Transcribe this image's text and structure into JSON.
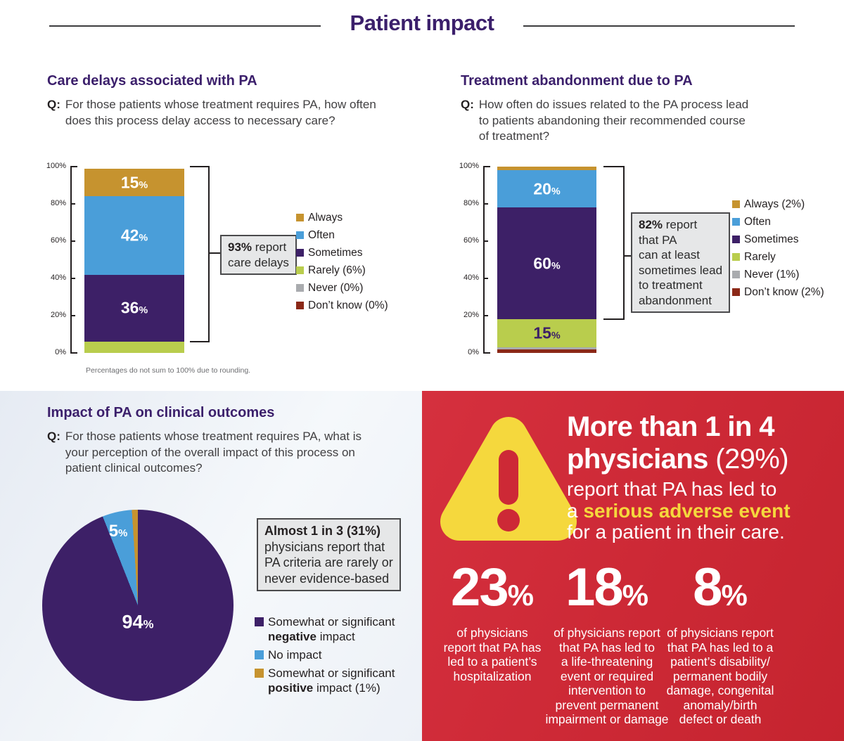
{
  "page": {
    "title": "Patient impact"
  },
  "labels": {
    "q_prefix": "Q:"
  },
  "colors": {
    "heading_purple": "#3b1f6b",
    "panel_red": "#cd2936",
    "alert_yellow": "#f5d83d",
    "callout_bg": "#e6e7e8",
    "callout_border": "#4a4a4c"
  },
  "chart_data": [
    {
      "type": "bar",
      "variant": "stacked-single-bar",
      "title": "Care delays associated with PA",
      "question_lines": [
        "For those patients whose treatment requires PA, how often",
        "does this process delay access to necessary care?"
      ],
      "ylim": [
        0,
        100
      ],
      "ylabel_ticks": [
        "0%",
        "20%",
        "40%",
        "60%",
        "80%",
        "100%"
      ],
      "segments_bottom_to_top": [
        {
          "name": "Rarely",
          "value": 6,
          "color": "#b9cd4d"
        },
        {
          "name": "Sometimes",
          "value": 36,
          "color": "#3d2067",
          "label": "36",
          "label_color": "#ffffff"
        },
        {
          "name": "Often",
          "value": 42,
          "color": "#4a9ed9",
          "label": "42",
          "label_color": "#ffffff"
        },
        {
          "name": "Always",
          "value": 15,
          "color": "#c6932f",
          "label": "15",
          "label_color": "#ffffff"
        }
      ],
      "legend": [
        {
          "label": "Always",
          "color": "#c6932f"
        },
        {
          "label": "Often",
          "color": "#4a9ed9"
        },
        {
          "label": "Sometimes",
          "color": "#3d2067"
        },
        {
          "label": "Rarely (6%)",
          "color": "#b9cd4d"
        },
        {
          "label": "Never (0%)",
          "color": "#a9abae"
        },
        {
          "label": "Don’t know (0%)",
          "color": "#8b2817"
        }
      ],
      "bracket_span": {
        "from_pct": 100,
        "to_pct": 6
      },
      "callout": {
        "line1_bold": "93%",
        "line1_rest": " report",
        "lines": [
          "care delays"
        ]
      },
      "note": "Percentages do not sum to 100% due to rounding."
    },
    {
      "type": "bar",
      "variant": "stacked-single-bar",
      "title": "Treatment abandonment due to PA",
      "question_lines": [
        "How often do issues related to the PA process lead",
        "to patients abandoning their recommended course",
        "of treatment?"
      ],
      "ylim": [
        0,
        100
      ],
      "ylabel_ticks": [
        "0%",
        "20%",
        "40%",
        "60%",
        "80%",
        "100%"
      ],
      "segments_bottom_to_top": [
        {
          "name": "Don’t know",
          "value": 2,
          "color": "#8b2817"
        },
        {
          "name": "Never",
          "value": 1,
          "color": "#a9abae"
        },
        {
          "name": "Rarely",
          "value": 15,
          "color": "#b9cd4d",
          "label": "15",
          "label_color": "#3d2067"
        },
        {
          "name": "Sometimes",
          "value": 60,
          "color": "#3d2067",
          "label": "60",
          "label_color": "#ffffff"
        },
        {
          "name": "Often",
          "value": 20,
          "color": "#4a9ed9",
          "label": "20",
          "label_color": "#ffffff"
        },
        {
          "name": "Always",
          "value": 2,
          "color": "#c6932f"
        }
      ],
      "legend": [
        {
          "label": "Always (2%)",
          "color": "#c6932f"
        },
        {
          "label": "Often",
          "color": "#4a9ed9"
        },
        {
          "label": "Sometimes",
          "color": "#3d2067"
        },
        {
          "label": "Rarely",
          "color": "#b9cd4d"
        },
        {
          "label": "Never (1%)",
          "color": "#a9abae"
        },
        {
          "label": "Don’t know (2%)",
          "color": "#8b2817"
        }
      ],
      "bracket_span": {
        "from_pct": 100,
        "to_pct": 18
      },
      "callout": {
        "line1_bold": "82%",
        "line1_rest": " report",
        "lines": [
          "that PA",
          "can at least",
          "sometimes lead",
          "to treatment",
          "abandonment"
        ]
      }
    },
    {
      "type": "pie",
      "title": "Impact of PA on clinical outcomes",
      "question_lines": [
        "For those patients whose treatment requires PA, what is",
        "your perception of the overall impact of this process on",
        "patient clinical outcomes?"
      ],
      "slices": [
        {
          "label": "Somewhat or significant negative impact",
          "value": 94,
          "color": "#3d2067",
          "value_label": "94"
        },
        {
          "label": "No impact",
          "value": 5,
          "color": "#4a9ed9",
          "value_label": "5"
        },
        {
          "label": "Somewhat or significant positive impact (1%)",
          "value": 1,
          "color": "#c6932f"
        }
      ],
      "legend": [
        {
          "color": "#3d2067",
          "lines": [
            [
              {
                "t": "Somewhat or significant",
                "b": false
              }
            ],
            [
              {
                "t": "negative",
                "b": true
              },
              {
                "t": " impact",
                "b": false
              }
            ]
          ]
        },
        {
          "color": "#4a9ed9",
          "lines": [
            [
              {
                "t": "No impact",
                "b": false
              }
            ]
          ]
        },
        {
          "color": "#c6932f",
          "lines": [
            [
              {
                "t": "Somewhat or significant",
                "b": false
              }
            ],
            [
              {
                "t": "positive",
                "b": true
              },
              {
                "t": " impact (1%)",
                "b": false
              }
            ]
          ]
        }
      ],
      "callout": {
        "line1_bold": "Almost 1 in 3 (31%)",
        "line1_rest": "",
        "lines": [
          "physicians report that",
          "PA criteria are rarely or",
          "never evidence-based"
        ]
      }
    }
  ],
  "alert": {
    "headline_bold_1": "More than 1 in 4",
    "headline_bold_2": "physicians",
    "headline_normal_2": " (29%)",
    "line_1": "report that PA has led to",
    "line_2_pre": "a ",
    "line_2_bold": "serious adverse event",
    "line_3": "for a patient in their care.",
    "warning_icon": "warning-triangle",
    "stats": [
      {
        "value": "23",
        "unit": "%",
        "lines": [
          "of physicians",
          "report that PA has",
          "led to a patient’s",
          "hospitalization"
        ]
      },
      {
        "value": "18",
        "unit": "%",
        "lines": [
          "of physicians report",
          "that PA has led to",
          "a life-threatening",
          "event or required",
          "intervention to",
          "prevent permanent",
          "impairment or damage"
        ]
      },
      {
        "value": "8",
        "unit": "%",
        "lines": [
          "of physicians report",
          "that PA has led to a",
          "patient’s disability/",
          "permanent bodily",
          "damage, congenital",
          "anomaly/birth",
          "defect or death"
        ]
      }
    ]
  }
}
